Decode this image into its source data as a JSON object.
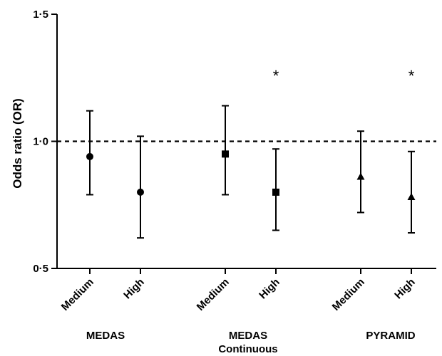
{
  "chart_data": {
    "type": "scatter",
    "title": "",
    "xlabel": "",
    "ylabel": "Odds ratio (OR)",
    "ylim": [
      0.5,
      1.5
    ],
    "yticks": [
      {
        "value": 0.5,
        "label": "0·5"
      },
      {
        "value": 1.0,
        "label": "1·0"
      },
      {
        "value": 1.5,
        "label": "1·5"
      }
    ],
    "reference_line": {
      "value": 1.0,
      "style": "dashed"
    },
    "grid": false,
    "groups": [
      {
        "label": [
          "MEDAS"
        ],
        "marker": "circle",
        "points": [
          {
            "category": "Medium",
            "or": 0.94,
            "lower": 0.79,
            "upper": 1.12,
            "significant": false
          },
          {
            "category": "High",
            "or": 0.8,
            "lower": 0.62,
            "upper": 1.02,
            "significant": false
          }
        ]
      },
      {
        "label": [
          "MEDAS",
          "Continuous"
        ],
        "marker": "square",
        "points": [
          {
            "category": "Medium",
            "or": 0.95,
            "lower": 0.79,
            "upper": 1.14,
            "significant": false
          },
          {
            "category": "High",
            "or": 0.8,
            "lower": 0.65,
            "upper": 0.97,
            "significant": true
          }
        ]
      },
      {
        "label": [
          "PYRAMID"
        ],
        "marker": "triangle",
        "points": [
          {
            "category": "Medium",
            "or": 0.86,
            "lower": 0.72,
            "upper": 1.04,
            "significant": false
          },
          {
            "category": "High",
            "or": 0.78,
            "lower": 0.64,
            "upper": 0.96,
            "significant": true
          }
        ]
      }
    ],
    "significance_marker": "*"
  }
}
